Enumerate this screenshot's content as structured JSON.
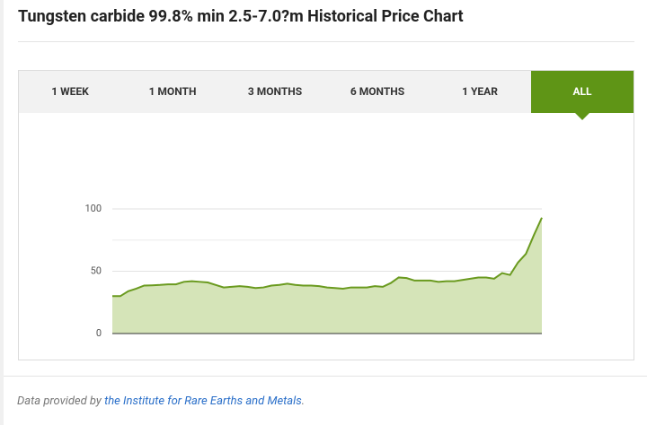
{
  "chart_data": {
    "type": "area",
    "title": "Tungsten carbide 99.8% min 2.5-7.0?m Historical Price Chart",
    "categories": [
      null,
      null,
      null,
      null,
      null,
      null,
      null,
      null,
      null,
      null,
      null,
      null,
      null,
      null,
      null,
      null,
      null,
      null,
      null,
      null,
      null,
      null,
      null,
      null,
      null,
      null,
      null,
      null,
      null,
      null,
      null,
      null,
      null,
      null,
      null,
      null,
      null,
      null,
      null,
      null,
      null,
      null,
      null,
      null,
      null,
      null,
      null,
      null,
      null,
      null,
      null,
      null,
      null,
      null,
      null
    ],
    "values": [
      30,
      30,
      34,
      36,
      38.5,
      38.7,
      39,
      39.5,
      39.5,
      41.5,
      42,
      41.5,
      41,
      39,
      37,
      37.5,
      38,
      37.5,
      36.5,
      37,
      38.5,
      39,
      40,
      39,
      38.5,
      38.5,
      38,
      37,
      36.5,
      36,
      37,
      37,
      37,
      38,
      37.5,
      40.5,
      45,
      44.5,
      42.5,
      42.5,
      42.5,
      41.5,
      42,
      42,
      43,
      44,
      45,
      45,
      44,
      48.5,
      47,
      57,
      64,
      79,
      93
    ],
    "color": "#6a9a1f",
    "fill_color": "#d5e4b8",
    "ylim": [
      0,
      100
    ],
    "yticks": [
      0,
      50,
      100
    ],
    "minor_gridlines": [
      25,
      75
    ],
    "grid": true
  },
  "tabs": [
    {
      "label": "1 WEEK",
      "selected": false
    },
    {
      "label": "1 MONTH",
      "selected": false
    },
    {
      "label": "3 MONTHS",
      "selected": false
    },
    {
      "label": "6 MONTHS",
      "selected": false
    },
    {
      "label": "1 YEAR",
      "selected": false
    },
    {
      "label": "ALL",
      "selected": true
    }
  ],
  "footer": {
    "prefix": "Data provided by",
    "link": "the Institute for Rare Earths and Metals",
    "suffix": "."
  }
}
